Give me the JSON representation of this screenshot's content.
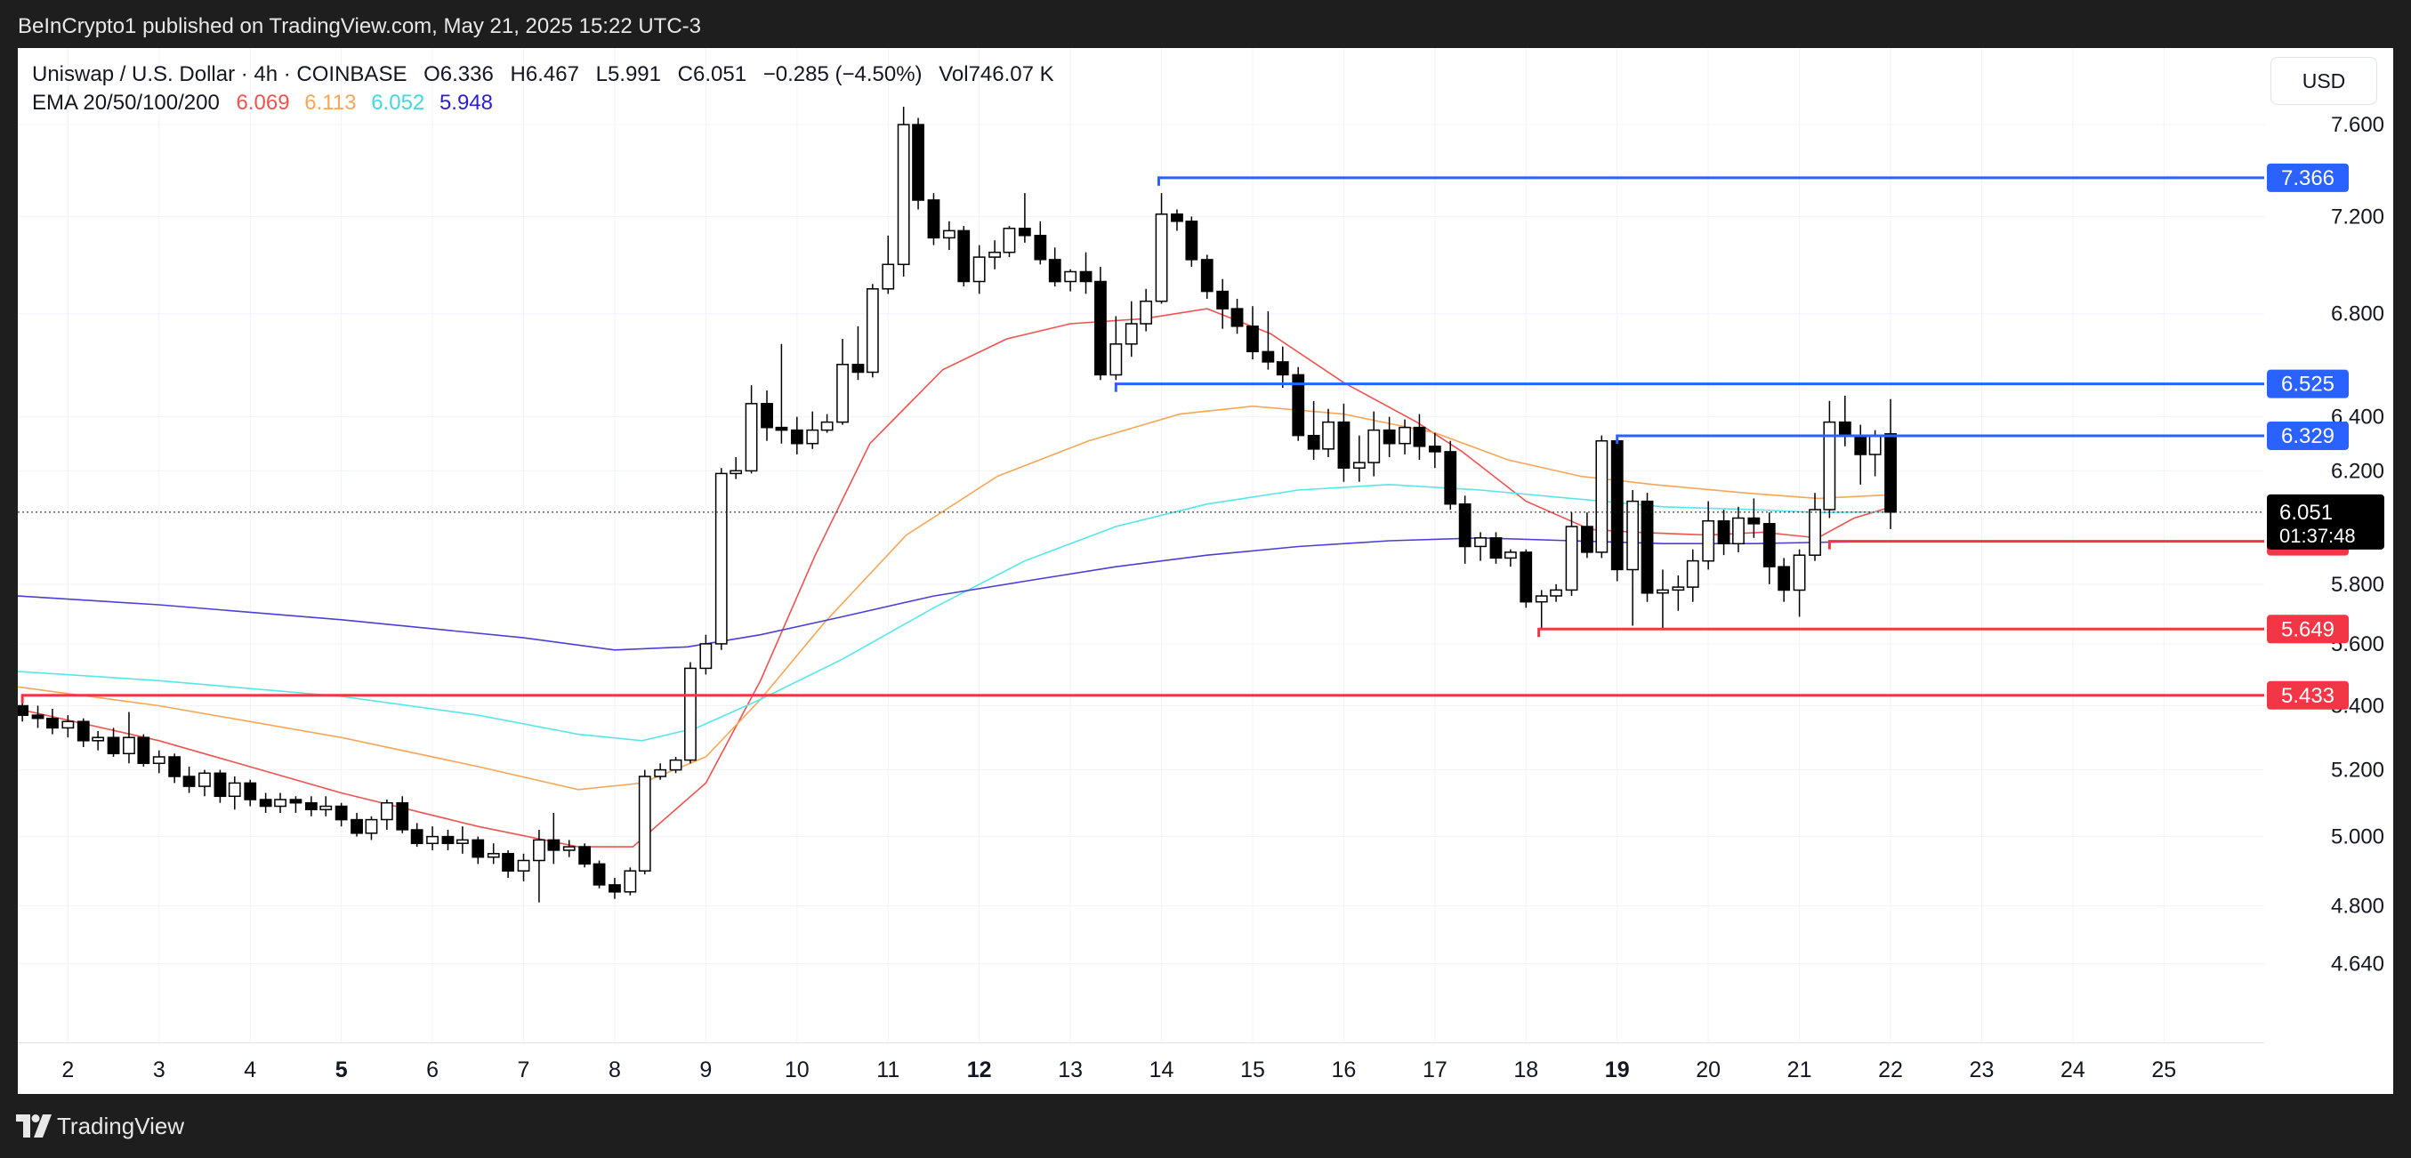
{
  "header": {
    "publisher": "BeInCrypto1 published on TradingView.com, May 21, 2025 15:22 UTC-3"
  },
  "legend": {
    "symbol": "Uniswap / U.S. Dollar · 4h · COINBASE",
    "open": "O6.336",
    "high": "H6.467",
    "low": "L5.991",
    "close": "C6.051",
    "change": "−0.285 (−4.50%)",
    "volume": "Vol746.07 K",
    "ema_label": "EMA 20/50/100/200",
    "ema20": "6.069",
    "ema50": "6.113",
    "ema100": "6.052",
    "ema200": "5.948"
  },
  "currency": "USD",
  "footer": {
    "brand": "TradingView"
  },
  "colors": {
    "ema20": "#ef5350",
    "ema50": "#f7a656",
    "ema100": "#57e6ea",
    "ema200": "#4a3fd6",
    "resistance": "#2962ff",
    "support": "#f23645",
    "candle_up": "#ffffff",
    "candle_down": "#000000",
    "last_price_bg": "#000000"
  },
  "chart_data": {
    "type": "candlestick",
    "y_scale": "log",
    "ylim": [
      4.43,
      7.95
    ],
    "y_ticks": [
      "4.640",
      "4.800",
      "5.000",
      "5.200",
      "5.400",
      "5.600",
      "5.800",
      "6.200",
      "6.400",
      "6.800",
      "7.200",
      "7.600"
    ],
    "x_ticks": [
      {
        "label": "2",
        "day": 2
      },
      {
        "label": "3",
        "day": 3
      },
      {
        "label": "4",
        "day": 4
      },
      {
        "label": "5",
        "day": 5,
        "bold": true
      },
      {
        "label": "6",
        "day": 6
      },
      {
        "label": "7",
        "day": 7
      },
      {
        "label": "8",
        "day": 8
      },
      {
        "label": "9",
        "day": 9
      },
      {
        "label": "10",
        "day": 10
      },
      {
        "label": "11",
        "day": 11
      },
      {
        "label": "12",
        "day": 12,
        "bold": true
      },
      {
        "label": "13",
        "day": 13
      },
      {
        "label": "14",
        "day": 14
      },
      {
        "label": "15",
        "day": 15
      },
      {
        "label": "16",
        "day": 16
      },
      {
        "label": "17",
        "day": 17
      },
      {
        "label": "18",
        "day": 18
      },
      {
        "label": "19",
        "day": 19,
        "bold": true
      },
      {
        "label": "20",
        "day": 20
      },
      {
        "label": "21",
        "day": 21
      },
      {
        "label": "22",
        "day": 22
      },
      {
        "label": "23",
        "day": 23
      },
      {
        "label": "24",
        "day": 24
      },
      {
        "label": "25",
        "day": 25
      }
    ],
    "xlim": [
      1.45,
      26.1
    ],
    "candle_period_days": 0.1667,
    "candles": [
      [
        1.5,
        5.4,
        5.43,
        5.35,
        5.37
      ],
      [
        1.67,
        5.37,
        5.4,
        5.33,
        5.36
      ],
      [
        1.83,
        5.36,
        5.39,
        5.31,
        5.33
      ],
      [
        2.0,
        5.33,
        5.37,
        5.3,
        5.35
      ],
      [
        2.17,
        5.35,
        5.36,
        5.27,
        5.29
      ],
      [
        2.33,
        5.29,
        5.32,
        5.26,
        5.3
      ],
      [
        2.5,
        5.3,
        5.33,
        5.24,
        5.25
      ],
      [
        2.67,
        5.25,
        5.38,
        5.22,
        5.3
      ],
      [
        2.83,
        5.3,
        5.31,
        5.21,
        5.22
      ],
      [
        3.0,
        5.22,
        5.26,
        5.19,
        5.24
      ],
      [
        3.17,
        5.24,
        5.25,
        5.16,
        5.18
      ],
      [
        3.33,
        5.18,
        5.21,
        5.13,
        5.15
      ],
      [
        3.5,
        5.15,
        5.2,
        5.12,
        5.19
      ],
      [
        3.67,
        5.19,
        5.2,
        5.1,
        5.12
      ],
      [
        3.83,
        5.12,
        5.18,
        5.08,
        5.16
      ],
      [
        4.0,
        5.16,
        5.17,
        5.09,
        5.11
      ],
      [
        4.17,
        5.11,
        5.13,
        5.07,
        5.09
      ],
      [
        4.33,
        5.09,
        5.13,
        5.07,
        5.11
      ],
      [
        4.5,
        5.11,
        5.12,
        5.07,
        5.1
      ],
      [
        4.67,
        5.1,
        5.12,
        5.06,
        5.08
      ],
      [
        4.83,
        5.08,
        5.12,
        5.06,
        5.09
      ],
      [
        5.0,
        5.09,
        5.1,
        5.03,
        5.05
      ],
      [
        5.17,
        5.05,
        5.07,
        5.0,
        5.01
      ],
      [
        5.33,
        5.01,
        5.06,
        4.99,
        5.05
      ],
      [
        5.5,
        5.05,
        5.11,
        5.02,
        5.1
      ],
      [
        5.67,
        5.1,
        5.12,
        5.01,
        5.02
      ],
      [
        5.83,
        5.02,
        5.04,
        4.97,
        4.98
      ],
      [
        6.0,
        4.98,
        5.03,
        4.96,
        5.0
      ],
      [
        6.17,
        5.0,
        5.02,
        4.96,
        4.98
      ],
      [
        6.33,
        4.98,
        5.03,
        4.95,
        4.99
      ],
      [
        6.5,
        4.99,
        5.0,
        4.92,
        4.94
      ],
      [
        6.67,
        4.94,
        4.98,
        4.92,
        4.95
      ],
      [
        6.83,
        4.95,
        4.96,
        4.88,
        4.9
      ],
      [
        7.0,
        4.9,
        4.95,
        4.87,
        4.93
      ],
      [
        7.17,
        4.93,
        5.02,
        4.81,
        4.99
      ],
      [
        7.33,
        4.99,
        5.07,
        4.92,
        4.96
      ],
      [
        7.5,
        4.96,
        4.99,
        4.94,
        4.97
      ],
      [
        7.67,
        4.97,
        4.98,
        4.91,
        4.92
      ],
      [
        7.83,
        4.92,
        4.93,
        4.85,
        4.86
      ],
      [
        8.0,
        4.86,
        4.88,
        4.82,
        4.84
      ],
      [
        8.17,
        4.84,
        4.91,
        4.83,
        4.9
      ],
      [
        8.33,
        4.9,
        5.2,
        4.89,
        5.18
      ],
      [
        8.5,
        5.18,
        5.22,
        5.17,
        5.2
      ],
      [
        8.67,
        5.2,
        5.24,
        5.19,
        5.23
      ],
      [
        8.83,
        5.23,
        5.54,
        5.22,
        5.52
      ],
      [
        9.0,
        5.52,
        5.63,
        5.5,
        5.6
      ],
      [
        9.17,
        5.6,
        6.21,
        5.58,
        6.19
      ],
      [
        9.33,
        6.19,
        6.25,
        6.17,
        6.2
      ],
      [
        9.5,
        6.2,
        6.52,
        6.19,
        6.45
      ],
      [
        9.67,
        6.45,
        6.5,
        6.31,
        6.36
      ],
      [
        9.83,
        6.36,
        6.68,
        6.3,
        6.35
      ],
      [
        10.0,
        6.35,
        6.4,
        6.26,
        6.3
      ],
      [
        10.17,
        6.3,
        6.42,
        6.28,
        6.35
      ],
      [
        10.33,
        6.35,
        6.41,
        6.34,
        6.38
      ],
      [
        10.5,
        6.38,
        6.7,
        6.37,
        6.6
      ],
      [
        10.67,
        6.6,
        6.75,
        6.54,
        6.57
      ],
      [
        10.83,
        6.57,
        6.92,
        6.55,
        6.9
      ],
      [
        11.0,
        6.9,
        7.12,
        6.88,
        7.0
      ],
      [
        11.17,
        7.0,
        7.68,
        6.95,
        7.6
      ],
      [
        11.33,
        7.6,
        7.63,
        7.23,
        7.27
      ],
      [
        11.5,
        7.27,
        7.3,
        7.08,
        7.11
      ],
      [
        11.67,
        7.11,
        7.18,
        7.06,
        7.14
      ],
      [
        11.83,
        7.14,
        7.16,
        6.91,
        6.93
      ],
      [
        12.0,
        6.93,
        7.08,
        6.88,
        7.03
      ],
      [
        12.17,
        7.03,
        7.1,
        6.98,
        7.05
      ],
      [
        12.33,
        7.05,
        7.16,
        7.03,
        7.15
      ],
      [
        12.5,
        7.15,
        7.3,
        7.09,
        7.12
      ],
      [
        12.67,
        7.12,
        7.18,
        7.0,
        7.02
      ],
      [
        12.83,
        7.02,
        7.07,
        6.91,
        6.93
      ],
      [
        13.0,
        6.93,
        6.98,
        6.89,
        6.97
      ],
      [
        13.17,
        6.97,
        7.05,
        6.88,
        6.93
      ],
      [
        13.33,
        6.93,
        6.99,
        6.54,
        6.56
      ],
      [
        13.5,
        6.56,
        6.79,
        6.54,
        6.68
      ],
      [
        13.67,
        6.68,
        6.85,
        6.63,
        6.76
      ],
      [
        13.83,
        6.76,
        6.9,
        6.73,
        6.85
      ],
      [
        14.0,
        6.85,
        7.3,
        6.84,
        7.21
      ],
      [
        14.17,
        7.21,
        7.23,
        7.14,
        7.18
      ],
      [
        14.33,
        7.18,
        7.2,
        6.99,
        7.02
      ],
      [
        14.5,
        7.02,
        7.04,
        6.86,
        6.89
      ],
      [
        14.67,
        6.89,
        6.94,
        6.74,
        6.82
      ],
      [
        14.83,
        6.82,
        6.86,
        6.72,
        6.75
      ],
      [
        15.0,
        6.75,
        6.83,
        6.62,
        6.65
      ],
      [
        15.17,
        6.65,
        6.81,
        6.58,
        6.61
      ],
      [
        15.33,
        6.61,
        6.67,
        6.51,
        6.56
      ],
      [
        15.5,
        6.56,
        6.59,
        6.31,
        6.33
      ],
      [
        15.67,
        6.33,
        6.46,
        6.24,
        6.28
      ],
      [
        15.83,
        6.28,
        6.43,
        6.25,
        6.38
      ],
      [
        16.0,
        6.38,
        6.45,
        6.16,
        6.21
      ],
      [
        16.17,
        6.21,
        6.33,
        6.16,
        6.23
      ],
      [
        16.33,
        6.23,
        6.42,
        6.18,
        6.35
      ],
      [
        16.5,
        6.35,
        6.4,
        6.25,
        6.3
      ],
      [
        16.67,
        6.3,
        6.39,
        6.26,
        6.36
      ],
      [
        16.83,
        6.36,
        6.41,
        6.24,
        6.29
      ],
      [
        17.0,
        6.29,
        6.34,
        6.21,
        6.27
      ],
      [
        17.17,
        6.27,
        6.31,
        6.06,
        6.08
      ],
      [
        17.33,
        6.08,
        6.11,
        5.87,
        5.93
      ],
      [
        17.5,
        5.93,
        5.98,
        5.88,
        5.96
      ],
      [
        17.67,
        5.96,
        5.98,
        5.87,
        5.89
      ],
      [
        17.83,
        5.89,
        5.92,
        5.86,
        5.91
      ],
      [
        18.0,
        5.91,
        5.92,
        5.72,
        5.74
      ],
      [
        18.17,
        5.74,
        5.78,
        5.65,
        5.76
      ],
      [
        18.33,
        5.76,
        5.8,
        5.74,
        5.78
      ],
      [
        18.5,
        5.78,
        6.05,
        5.76,
        6.0
      ],
      [
        18.67,
        6.0,
        6.05,
        5.89,
        5.91
      ],
      [
        18.83,
        5.91,
        6.33,
        5.89,
        6.31
      ],
      [
        19.0,
        6.31,
        6.33,
        5.81,
        5.85
      ],
      [
        19.17,
        5.85,
        6.13,
        5.66,
        6.09
      ],
      [
        19.33,
        6.09,
        6.12,
        5.74,
        5.77
      ],
      [
        19.5,
        5.77,
        5.85,
        5.65,
        5.78
      ],
      [
        19.67,
        5.78,
        5.83,
        5.71,
        5.79
      ],
      [
        19.83,
        5.79,
        5.92,
        5.74,
        5.88
      ],
      [
        20.0,
        5.88,
        6.09,
        5.85,
        6.02
      ],
      [
        20.17,
        6.02,
        6.06,
        5.9,
        5.94
      ],
      [
        20.33,
        5.94,
        6.07,
        5.91,
        6.03
      ],
      [
        20.5,
        6.03,
        6.1,
        5.96,
        6.01
      ],
      [
        20.67,
        6.01,
        6.05,
        5.8,
        5.86
      ],
      [
        20.83,
        5.86,
        5.89,
        5.74,
        5.78
      ],
      [
        21.0,
        5.78,
        5.92,
        5.69,
        5.9
      ],
      [
        21.17,
        5.9,
        6.12,
        5.88,
        6.06
      ],
      [
        21.33,
        6.06,
        6.46,
        6.03,
        6.38
      ],
      [
        21.5,
        6.38,
        6.48,
        6.29,
        6.33
      ],
      [
        21.67,
        6.33,
        6.37,
        6.15,
        6.26
      ],
      [
        21.83,
        6.26,
        6.35,
        6.18,
        6.33
      ],
      [
        22.0,
        6.336,
        6.467,
        5.991,
        6.051
      ]
    ],
    "ema": [
      {
        "name": "EMA 20",
        "color": "#ef5350",
        "points": [
          [
            1.45,
            5.39
          ],
          [
            3.0,
            5.29
          ],
          [
            5.0,
            5.13
          ],
          [
            6.5,
            5.03
          ],
          [
            7.6,
            4.97
          ],
          [
            8.2,
            4.97
          ],
          [
            9.0,
            5.16
          ],
          [
            9.6,
            5.48
          ],
          [
            10.2,
            5.9
          ],
          [
            10.8,
            6.3
          ],
          [
            11.6,
            6.58
          ],
          [
            12.3,
            6.7
          ],
          [
            13.0,
            6.76
          ],
          [
            13.8,
            6.78
          ],
          [
            14.5,
            6.82
          ],
          [
            15.2,
            6.72
          ],
          [
            16.0,
            6.53
          ],
          [
            16.8,
            6.38
          ],
          [
            17.3,
            6.27
          ],
          [
            18.0,
            6.09
          ],
          [
            18.7,
            5.99
          ],
          [
            19.2,
            5.98
          ],
          [
            20.0,
            5.97
          ],
          [
            20.6,
            5.98
          ],
          [
            21.2,
            5.96
          ],
          [
            21.6,
            6.03
          ],
          [
            22.0,
            6.069
          ]
        ]
      },
      {
        "name": "EMA 50",
        "color": "#f7a656",
        "points": [
          [
            1.45,
            5.46
          ],
          [
            3.0,
            5.4
          ],
          [
            5.0,
            5.3
          ],
          [
            6.5,
            5.21
          ],
          [
            7.6,
            5.14
          ],
          [
            8.3,
            5.16
          ],
          [
            9.0,
            5.24
          ],
          [
            9.6,
            5.42
          ],
          [
            10.3,
            5.67
          ],
          [
            11.2,
            5.97
          ],
          [
            12.2,
            6.18
          ],
          [
            13.2,
            6.31
          ],
          [
            14.2,
            6.41
          ],
          [
            15.0,
            6.44
          ],
          [
            16.0,
            6.41
          ],
          [
            17.0,
            6.34
          ],
          [
            17.8,
            6.24
          ],
          [
            18.6,
            6.18
          ],
          [
            19.4,
            6.15
          ],
          [
            20.4,
            6.12
          ],
          [
            21.2,
            6.1
          ],
          [
            22.0,
            6.113
          ]
        ]
      },
      {
        "name": "EMA 100",
        "color": "#57e6ea",
        "points": [
          [
            1.45,
            5.51
          ],
          [
            3.0,
            5.48
          ],
          [
            5.0,
            5.43
          ],
          [
            6.5,
            5.37
          ],
          [
            7.6,
            5.31
          ],
          [
            8.3,
            5.29
          ],
          [
            8.9,
            5.33
          ],
          [
            9.6,
            5.42
          ],
          [
            10.5,
            5.55
          ],
          [
            11.5,
            5.72
          ],
          [
            12.5,
            5.88
          ],
          [
            13.5,
            6.0
          ],
          [
            14.5,
            6.08
          ],
          [
            15.5,
            6.13
          ],
          [
            16.5,
            6.15
          ],
          [
            17.5,
            6.13
          ],
          [
            18.5,
            6.1
          ],
          [
            19.5,
            6.07
          ],
          [
            20.5,
            6.06
          ],
          [
            21.2,
            6.05
          ],
          [
            22.0,
            6.052
          ]
        ]
      },
      {
        "name": "EMA 200",
        "color": "#4a3fd6",
        "points": [
          [
            1.45,
            5.76
          ],
          [
            3.0,
            5.73
          ],
          [
            5.0,
            5.68
          ],
          [
            7.0,
            5.62
          ],
          [
            8.0,
            5.58
          ],
          [
            8.8,
            5.59
          ],
          [
            9.6,
            5.63
          ],
          [
            10.5,
            5.69
          ],
          [
            11.5,
            5.76
          ],
          [
            12.5,
            5.81
          ],
          [
            13.5,
            5.86
          ],
          [
            14.5,
            5.9
          ],
          [
            15.5,
            5.93
          ],
          [
            16.5,
            5.95
          ],
          [
            17.5,
            5.96
          ],
          [
            18.5,
            5.95
          ],
          [
            19.5,
            5.94
          ],
          [
            20.5,
            5.94
          ],
          [
            21.3,
            5.945
          ],
          [
            22.0,
            5.948
          ]
        ]
      }
    ],
    "levels": [
      {
        "price": 7.366,
        "label": "7.366",
        "kind": "resistance",
        "x_start": 13.97
      },
      {
        "price": 6.525,
        "label": "6.525",
        "kind": "resistance",
        "x_start": 13.5
      },
      {
        "price": 6.329,
        "label": "6.329",
        "kind": "resistance",
        "x_start": 19.0
      },
      {
        "price": 5.948,
        "label": "5.948",
        "kind": "support",
        "x_start": 21.33
      },
      {
        "price": 5.649,
        "label": "5.649",
        "kind": "support",
        "x_start": 18.14
      },
      {
        "price": 5.433,
        "label": "5.433",
        "kind": "support",
        "x_start": 1.5
      }
    ],
    "last_price": {
      "value": 6.051,
      "label": "6.051",
      "countdown": "01:37:48"
    }
  }
}
